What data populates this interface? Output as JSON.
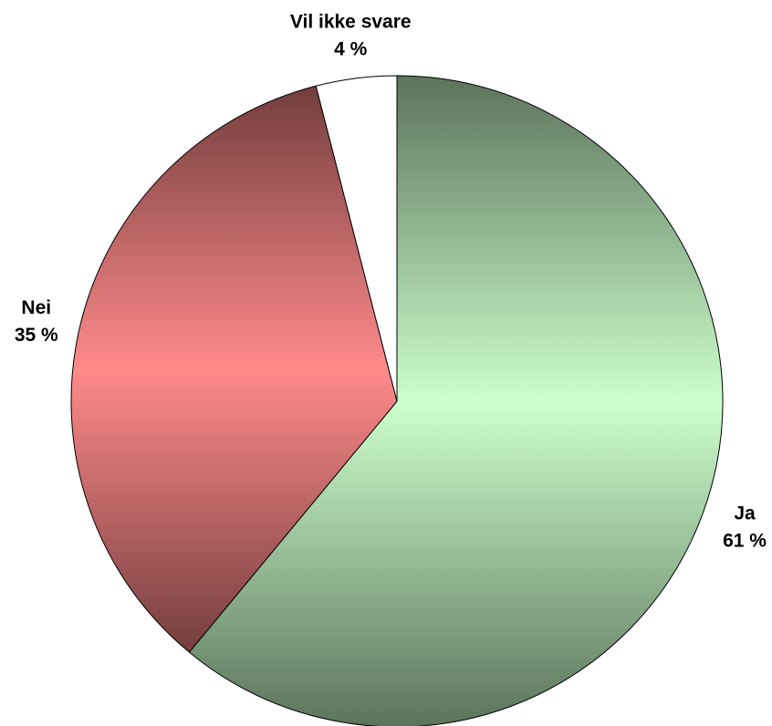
{
  "chart_data": {
    "type": "pie",
    "categories": [
      "Ja",
      "Nei",
      "Vil ikke svare"
    ],
    "values": [
      61,
      35,
      4
    ],
    "value_labels": [
      "61 %",
      "35 %",
      "4 %"
    ],
    "colors": [
      "#ccffcc",
      "#ff8a8a",
      "#ffffff"
    ]
  }
}
